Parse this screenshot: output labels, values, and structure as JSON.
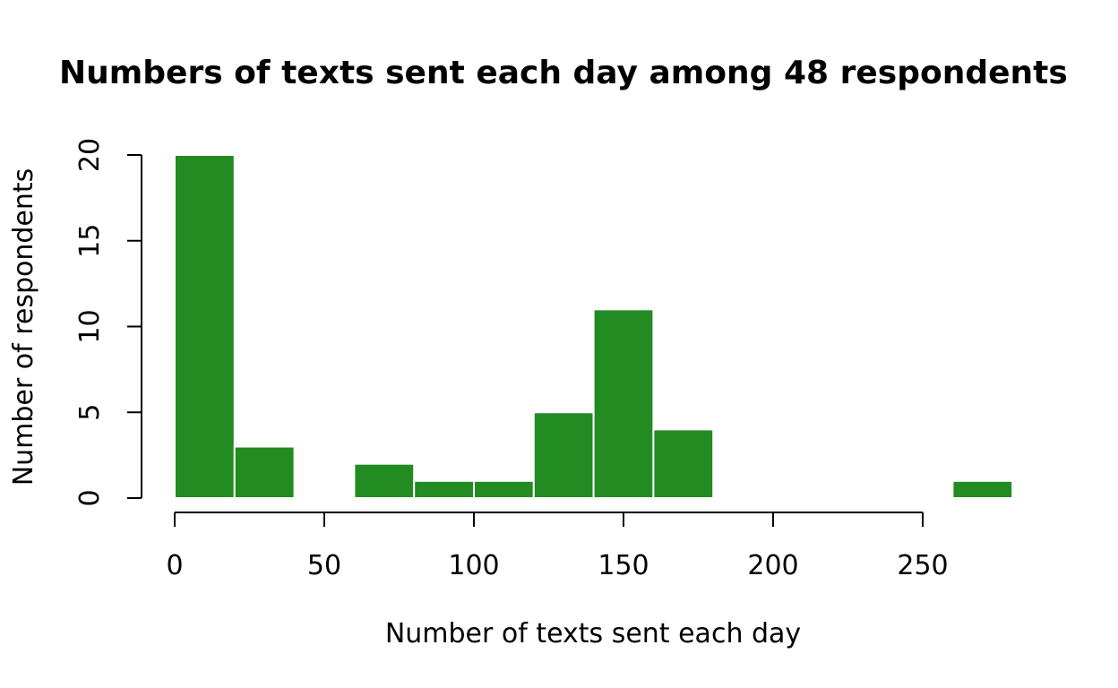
{
  "chart_data": {
    "type": "bar",
    "title": "Numbers of texts sent each day among 48 respondents",
    "xlabel": "Number of texts sent each day",
    "ylabel": "Number of respondents",
    "bar_color": "#228B22",
    "bar_border_color": "#ffffff",
    "bins": [
      {
        "start": 0,
        "end": 20,
        "count": 20
      },
      {
        "start": 20,
        "end": 40,
        "count": 3
      },
      {
        "start": 40,
        "end": 60,
        "count": 0
      },
      {
        "start": 60,
        "end": 80,
        "count": 2
      },
      {
        "start": 80,
        "end": 100,
        "count": 1
      },
      {
        "start": 100,
        "end": 120,
        "count": 1
      },
      {
        "start": 120,
        "end": 140,
        "count": 5
      },
      {
        "start": 140,
        "end": 160,
        "count": 11
      },
      {
        "start": 160,
        "end": 180,
        "count": 4
      },
      {
        "start": 180,
        "end": 200,
        "count": 0
      },
      {
        "start": 200,
        "end": 220,
        "count": 0
      },
      {
        "start": 220,
        "end": 240,
        "count": 0
      },
      {
        "start": 240,
        "end": 260,
        "count": 0
      },
      {
        "start": 260,
        "end": 280,
        "count": 1
      }
    ],
    "xlim": [
      0,
      280
    ],
    "ylim": [
      0,
      20
    ],
    "x_ticks": [
      0,
      50,
      100,
      150,
      200,
      250
    ],
    "x_tick_labels": [
      "0",
      "50",
      "100",
      "150",
      "200",
      "250"
    ],
    "y_ticks": [
      0,
      5,
      10,
      15,
      20
    ],
    "y_tick_labels": [
      "0",
      "5",
      "10",
      "15",
      "20"
    ],
    "grid": false,
    "legend": "none"
  }
}
